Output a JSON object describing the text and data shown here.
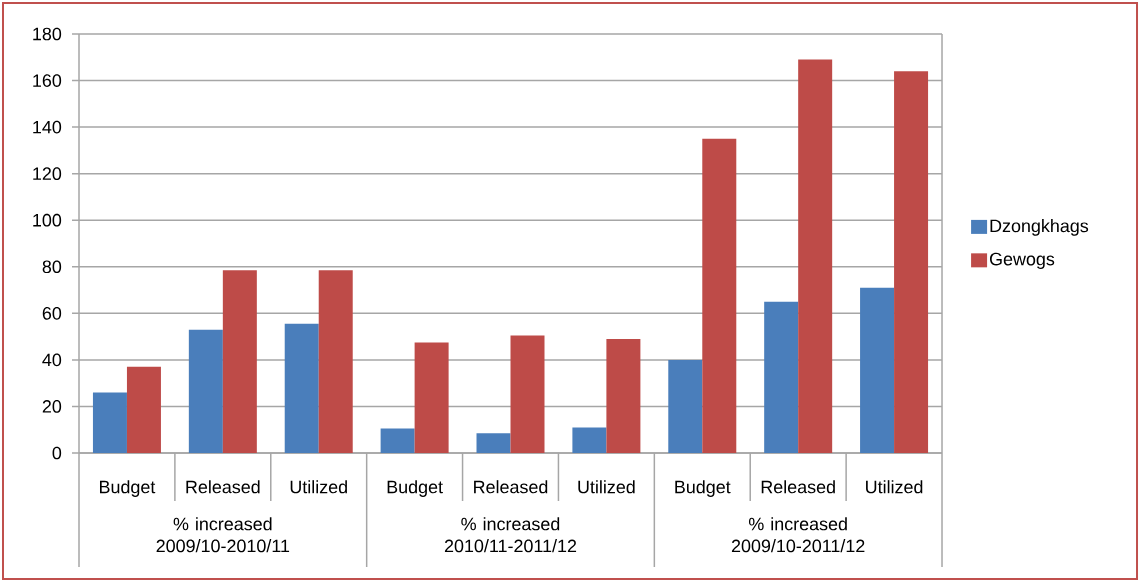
{
  "chart_data": {
    "type": "bar",
    "categories": [
      "Budget",
      "Released",
      "Utilized",
      "Budget",
      "Released",
      "Utilized",
      "Budget",
      "Released",
      "Utilized"
    ],
    "series": [
      {
        "name": "Dzongkhags",
        "color": "#4a7ebb",
        "values": [
          26,
          53,
          55.5,
          10.5,
          8.5,
          11,
          40,
          65,
          71
        ]
      },
      {
        "name": "Gewogs",
        "color": "#be4b48",
        "values": [
          37,
          78.5,
          78.5,
          47.5,
          50.5,
          49,
          135,
          169,
          164
        ]
      }
    ],
    "annotations": [
      "% increased 2009/10-2010/11",
      "% increased 2010/11-2011/12",
      "% increased 2009/10-2011/12"
    ],
    "ylim": [
      0,
      180
    ],
    "yticks": [
      0,
      20,
      40,
      60,
      80,
      100,
      120,
      140,
      160,
      180
    ],
    "grid": "y",
    "legend": "right"
  }
}
